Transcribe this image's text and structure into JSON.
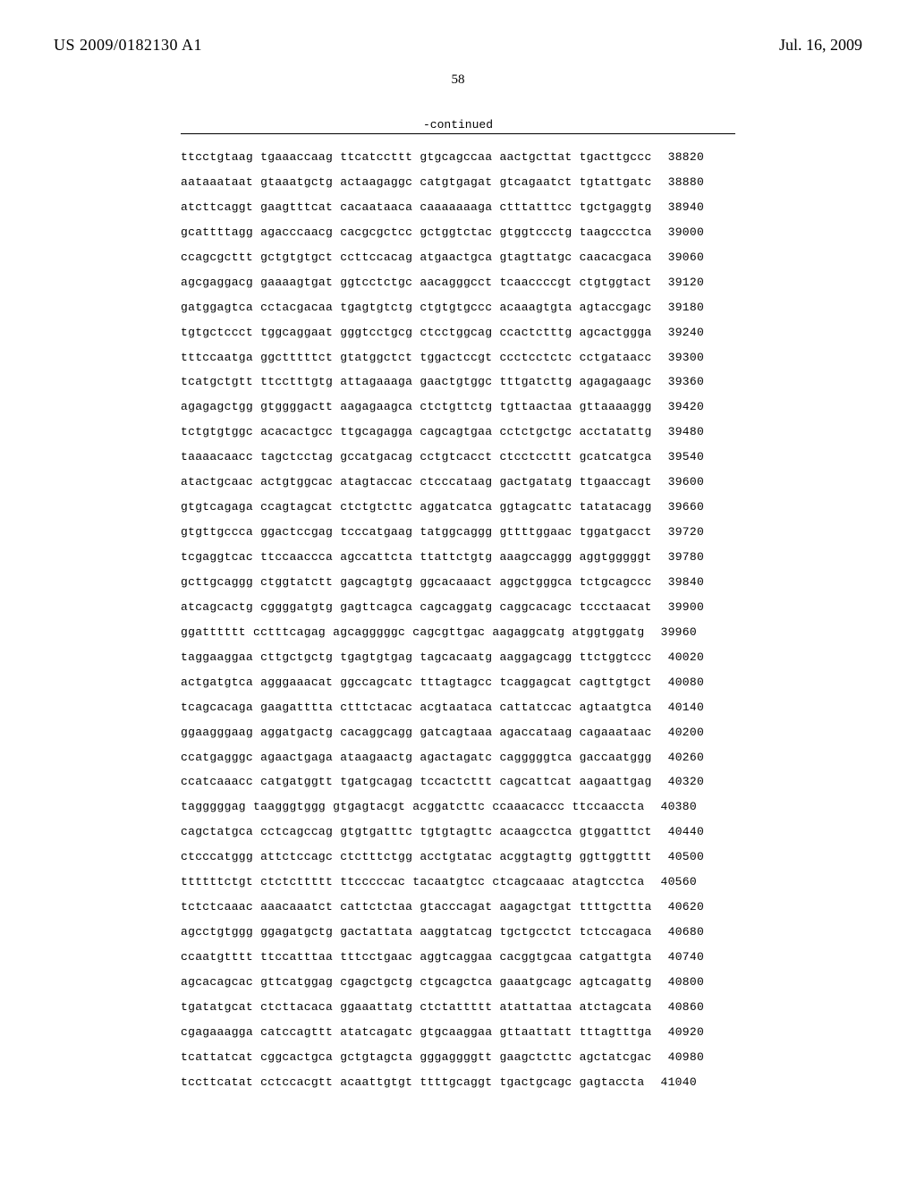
{
  "header": {
    "doc_id": "US 2009/0182130 A1",
    "date": "Jul. 16, 2009"
  },
  "page_number": "58",
  "continued_label": "-continued",
  "sequence": {
    "rows": [
      {
        "groups": [
          "ttcctgtaag",
          "tgaaaccaag",
          "ttcatccttt",
          "gtgcagccaa",
          "aactgcttat",
          "tgacttgccc"
        ],
        "pos": "38820"
      },
      {
        "groups": [
          "aataaataat",
          "gtaaatgctg",
          "actaagaggc",
          "catgtgagat",
          "gtcagaatct",
          "tgtattgatc"
        ],
        "pos": "38880"
      },
      {
        "groups": [
          "atcttcaggt",
          "gaagtttcat",
          "cacaataaca",
          "caaaaaaaga",
          "ctttatttcc",
          "tgctgaggtg"
        ],
        "pos": "38940"
      },
      {
        "groups": [
          "gcattttagg",
          "agacccaacg",
          "cacgcgctcc",
          "gctggtctac",
          "gtggtccctg",
          "taagccctca"
        ],
        "pos": "39000"
      },
      {
        "groups": [
          "ccagcgcttt",
          "gctgtgtgct",
          "ccttccacag",
          "atgaactgca",
          "gtagttatgc",
          "caacacgaca"
        ],
        "pos": "39060"
      },
      {
        "groups": [
          "agcgaggacg",
          "gaaaagtgat",
          "ggtcctctgc",
          "aacagggcct",
          "tcaaccccgt",
          "ctgtggtact"
        ],
        "pos": "39120"
      },
      {
        "groups": [
          "gatggagtca",
          "cctacgacaa",
          "tgagtgtctg",
          "ctgtgtgccc",
          "acaaagtgta",
          "agtaccgagc"
        ],
        "pos": "39180"
      },
      {
        "groups": [
          "tgtgctccct",
          "tggcaggaat",
          "gggtcctgcg",
          "ctcctggcag",
          "ccactctttg",
          "agcactggga"
        ],
        "pos": "39240"
      },
      {
        "groups": [
          "tttccaatga",
          "ggctttttct",
          "gtatggctct",
          "tggactccgt",
          "ccctcctctc",
          "cctgataacc"
        ],
        "pos": "39300"
      },
      {
        "groups": [
          "tcatgctgtt",
          "ttcctttgtg",
          "attagaaaga",
          "gaactgtggc",
          "tttgatcttg",
          "agagagaagc"
        ],
        "pos": "39360"
      },
      {
        "groups": [
          "agagagctgg",
          "gtggggactt",
          "aagagaagca",
          "ctctgttctg",
          "tgttaactaa",
          "gttaaaaggg"
        ],
        "pos": "39420"
      },
      {
        "groups": [
          "tctgtgtggc",
          "acacactgcc",
          "ttgcagagga",
          "cagcagtgaa",
          "cctctgctgc",
          "acctatattg"
        ],
        "pos": "39480"
      },
      {
        "groups": [
          "taaaacaacc",
          "tagctcctag",
          "gccatgacag",
          "cctgtcacct",
          "ctcctccttt",
          "gcatcatgca"
        ],
        "pos": "39540"
      },
      {
        "groups": [
          "atactgcaac",
          "actgtggcac",
          "atagtaccac",
          "ctcccataag",
          "gactgatatg",
          "ttgaaccagt"
        ],
        "pos": "39600"
      },
      {
        "groups": [
          "gtgtcagaga",
          "ccagtagcat",
          "ctctgtcttc",
          "aggatcatca",
          "ggtagcattc",
          "tatatacagg"
        ],
        "pos": "39660"
      },
      {
        "groups": [
          "gtgttgccca",
          "ggactccgag",
          "tcccatgaag",
          "tatggcaggg",
          "gttttggaac",
          "tggatgacct"
        ],
        "pos": "39720"
      },
      {
        "groups": [
          "tcgaggtcac",
          "ttccaaccca",
          "agccattcta",
          "ttattctgtg",
          "aaagccaggg",
          "aggtgggggt"
        ],
        "pos": "39780"
      },
      {
        "groups": [
          "gcttgcaggg",
          "ctggtatctt",
          "gagcagtgtg",
          "ggcacaaact",
          "aggctgggca",
          "tctgcagccc"
        ],
        "pos": "39840"
      },
      {
        "groups": [
          "atcagcactg",
          "cggggatgtg",
          "gagttcagca",
          "cagcaggatg",
          "caggcacagc",
          "tccctaacat"
        ],
        "pos": "39900"
      },
      {
        "groups": [
          "ggatttttt",
          "cctttcagag",
          "agcagggggc",
          "cagcgttgac",
          "aagaggcatg",
          "atggtggatg"
        ],
        "pos": "39960"
      },
      {
        "groups": [
          "taggaaggaa",
          "cttgctgctg",
          "tgagtgtgag",
          "tagcacaatg",
          "aaggagcagg",
          "ttctggtccc"
        ],
        "pos": "40020"
      },
      {
        "groups": [
          "actgatgtca",
          "agggaaacat",
          "ggccagcatc",
          "tttagtagcc",
          "tcaggagcat",
          "cagttgtgct"
        ],
        "pos": "40080"
      },
      {
        "groups": [
          "tcagcacaga",
          "gaagatttta",
          "ctttctacac",
          "acgtaataca",
          "cattatccac",
          "agtaatgtca"
        ],
        "pos": "40140"
      },
      {
        "groups": [
          "ggaagggaag",
          "aggatgactg",
          "cacaggcagg",
          "gatcagtaaa",
          "agaccataag",
          "cagaaataac"
        ],
        "pos": "40200"
      },
      {
        "groups": [
          "ccatgagggc",
          "agaactgaga",
          "ataagaactg",
          "agactagatc",
          "cagggggtca",
          "gaccaatggg"
        ],
        "pos": "40260"
      },
      {
        "groups": [
          "ccatcaaacc",
          "catgatggtt",
          "tgatgcagag",
          "tccactcttt",
          "cagcattcat",
          "aagaattgag"
        ],
        "pos": "40320"
      },
      {
        "groups": [
          "tagggggag",
          "taagggtggg",
          "gtgagtacgt",
          "acggatcttc",
          "ccaaacaccc",
          "ttccaaccta"
        ],
        "pos": "40380"
      },
      {
        "groups": [
          "cagctatgca",
          "cctcagccag",
          "gtgtgatttc",
          "tgtgtagttc",
          "acaagcctca",
          "gtggatttct"
        ],
        "pos": "40440"
      },
      {
        "groups": [
          "ctcccatggg",
          "attctccagc",
          "ctctttctgg",
          "acctgtatac",
          "acggtagttg",
          "ggttggtttt"
        ],
        "pos": "40500"
      },
      {
        "groups": [
          "ttttttctgt",
          "ctctcttttt",
          "ttcccccac",
          "tacaatgtcc",
          "ctcagcaaac",
          "atagtcctca"
        ],
        "pos": "40560"
      },
      {
        "groups": [
          "tctctcaaac",
          "aaacaaatct",
          "cattctctaa",
          "gtacccagat",
          "aagagctgat",
          "ttttgcttta"
        ],
        "pos": "40620"
      },
      {
        "groups": [
          "agcctgtggg",
          "ggagatgctg",
          "gactattata",
          "aaggtatcag",
          "tgctgcctct",
          "tctccagaca"
        ],
        "pos": "40680"
      },
      {
        "groups": [
          "ccaatgtttt",
          "ttccatttaa",
          "tttcctgaac",
          "aggtcaggaa",
          "cacggtgcaa",
          "catgattgta"
        ],
        "pos": "40740"
      },
      {
        "groups": [
          "agcacagcac",
          "gttcatggag",
          "cgagctgctg",
          "ctgcagctca",
          "gaaatgcagc",
          "agtcagattg"
        ],
        "pos": "40800"
      },
      {
        "groups": [
          "tgatatgcat",
          "ctcttacaca",
          "ggaaattatg",
          "ctctattttt",
          "atattattaa",
          "atctagcata"
        ],
        "pos": "40860"
      },
      {
        "groups": [
          "cgagaaagga",
          "catccagttt",
          "atatcagatc",
          "gtgcaaggaa",
          "gttaattatt",
          "tttagtttga"
        ],
        "pos": "40920"
      },
      {
        "groups": [
          "tcattatcat",
          "cggcactgca",
          "gctgtagcta",
          "gggaggggtt",
          "gaagctcttc",
          "agctatcgac"
        ],
        "pos": "40980"
      },
      {
        "groups": [
          "tccttcatat",
          "cctccacgtt",
          "acaattgtgt",
          "ttttgcaggt",
          "tgactgcagc",
          "gagtaccta"
        ],
        "pos": "41040"
      }
    ]
  }
}
